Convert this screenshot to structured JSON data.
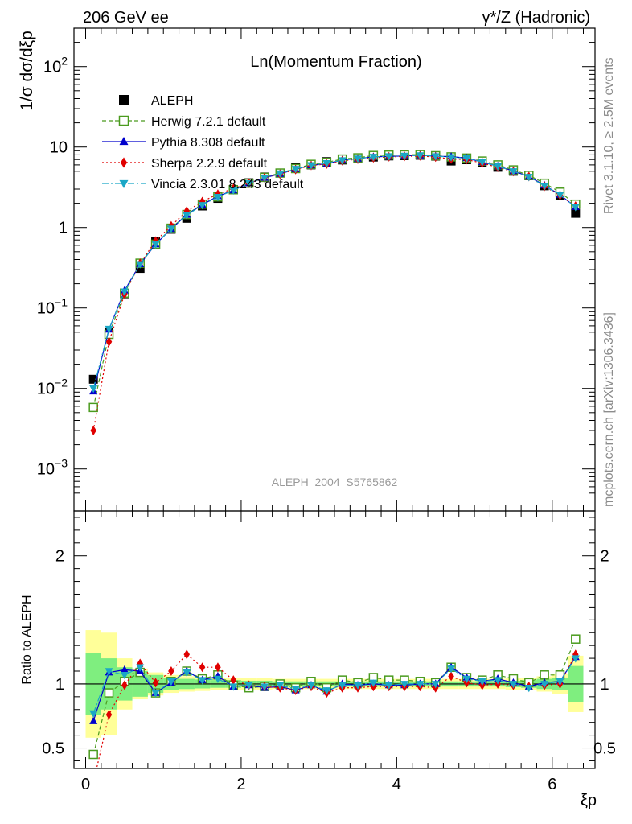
{
  "header": {
    "energy_label": "206 GeV ee",
    "process_label": "γ*/Z (Hadronic)"
  },
  "side_labels": {
    "rivet": "Rivet 3.1.10, ≥ 2.5M events",
    "mcplots": "mcplots.cern.ch [arXiv:1306.3436]"
  },
  "chart_data": [
    {
      "panel": "main",
      "type": "line",
      "title": "Ln(Momentum Fraction)",
      "ylabel": "1/σ dσ/dξp",
      "yscale": "log",
      "ylim": [
        0.0003,
        300
      ],
      "xlim": [
        -0.15,
        6.55
      ],
      "yticks": [
        "10-3",
        "10-2",
        "10-1",
        "1",
        "10",
        "102"
      ],
      "analysis_id": "ALEPH_2004_S5765862",
      "x": [
        0.1,
        0.3,
        0.5,
        0.7,
        0.9,
        1.1,
        1.3,
        1.5,
        1.7,
        1.9,
        2.1,
        2.3,
        2.5,
        2.7,
        2.9,
        3.1,
        3.3,
        3.5,
        3.7,
        3.9,
        4.1,
        4.3,
        4.5,
        4.7,
        4.9,
        5.1,
        5.3,
        5.5,
        5.7,
        5.9,
        6.1,
        6.3
      ],
      "series": [
        {
          "name": "ALEPH",
          "color": "#000000",
          "marker": "square",
          "values": [
            0.013,
            0.05,
            0.15,
            0.31,
            0.67,
            0.95,
            1.3,
            1.85,
            2.3,
            2.95,
            3.6,
            4.25,
            4.75,
            5.55,
            6.0,
            6.6,
            6.9,
            7.3,
            7.5,
            7.75,
            7.8,
            7.9,
            7.7,
            6.7,
            6.95,
            6.35,
            5.6,
            5.0,
            4.4,
            3.3,
            2.5,
            1.5
          ]
        },
        {
          "name": "Herwig 7.2.1 default",
          "color": "#4b9b1f",
          "marker": "open-square",
          "dash": "5,3",
          "values": [
            0.0058,
            0.047,
            0.153,
            0.36,
            0.62,
            0.98,
            1.45,
            1.95,
            2.4,
            2.95,
            3.55,
            4.2,
            4.75,
            5.4,
            6.1,
            6.45,
            7.1,
            7.35,
            7.85,
            7.95,
            8.0,
            8.05,
            7.8,
            7.55,
            7.3,
            6.7,
            6.0,
            5.2,
            4.45,
            3.55,
            2.75,
            1.95
          ]
        },
        {
          "name": "Pythia 8.308 default",
          "color": "#0000cc",
          "marker": "triangle-up",
          "dash": "",
          "values": [
            0.0092,
            0.054,
            0.165,
            0.35,
            0.62,
            0.96,
            1.44,
            1.92,
            2.45,
            2.9,
            3.55,
            4.15,
            4.65,
            5.3,
            5.95,
            6.2,
            6.9,
            7.2,
            7.55,
            7.65,
            7.75,
            7.9,
            7.7,
            7.6,
            7.3,
            6.5,
            5.8,
            5.05,
            4.3,
            3.35,
            2.55,
            1.8
          ]
        },
        {
          "name": "Sherpa 2.2.9 default",
          "color": "#e00000",
          "marker": "diamond",
          "dash": "2,3",
          "values": [
            0.003,
            0.038,
            0.148,
            0.36,
            0.68,
            1.05,
            1.6,
            2.1,
            2.6,
            3.05,
            3.55,
            4.15,
            4.6,
            5.25,
            5.9,
            6.15,
            6.75,
            7.05,
            7.35,
            7.55,
            7.65,
            7.75,
            7.5,
            7.1,
            7.0,
            6.3,
            5.6,
            4.95,
            4.3,
            3.25,
            2.5,
            1.85
          ]
        },
        {
          "name": "Vincia 2.3.01 8.243 default",
          "color": "#1aa7c6",
          "marker": "triangle-down",
          "dash": "8,3,2,3",
          "values": [
            0.01,
            0.055,
            0.16,
            0.35,
            0.62,
            0.97,
            1.42,
            1.9,
            2.4,
            2.9,
            3.55,
            4.15,
            4.7,
            5.35,
            5.95,
            6.3,
            6.85,
            7.2,
            7.55,
            7.7,
            7.8,
            7.9,
            7.7,
            7.5,
            7.25,
            6.5,
            5.75,
            5.0,
            4.25,
            3.3,
            2.55,
            1.8
          ]
        }
      ],
      "legend_position": "top-left"
    },
    {
      "panel": "ratio",
      "type": "line",
      "ylabel": "Ratio to ALEPH",
      "xlabel": "ξp",
      "ylim": [
        0.34,
        2.35
      ],
      "yticks": [
        "0.5",
        "1",
        "2"
      ],
      "xticks": [
        "0",
        "2",
        "4",
        "6"
      ],
      "x": [
        0.1,
        0.3,
        0.5,
        0.7,
        0.9,
        1.1,
        1.3,
        1.5,
        1.7,
        1.9,
        2.1,
        2.3,
        2.5,
        2.7,
        2.9,
        3.1,
        3.3,
        3.5,
        3.7,
        3.9,
        4.1,
        4.3,
        4.5,
        4.7,
        4.9,
        5.1,
        5.3,
        5.5,
        5.7,
        5.9,
        6.1,
        6.3
      ],
      "bands": {
        "stat_color": "#7fee7f",
        "total_color": "#ffff99",
        "stat_half_width": [
          0.24,
          0.2,
          0.13,
          0.1,
          0.07,
          0.05,
          0.04,
          0.035,
          0.03,
          0.03,
          0.025,
          0.025,
          0.02,
          0.02,
          0.02,
          0.02,
          0.02,
          0.02,
          0.02,
          0.02,
          0.02,
          0.02,
          0.02,
          0.02,
          0.02,
          0.02,
          0.02,
          0.025,
          0.03,
          0.04,
          0.05,
          0.14
        ],
        "total_half_width": [
          0.42,
          0.4,
          0.2,
          0.12,
          0.09,
          0.07,
          0.06,
          0.055,
          0.05,
          0.05,
          0.045,
          0.045,
          0.04,
          0.04,
          0.04,
          0.04,
          0.04,
          0.04,
          0.04,
          0.04,
          0.04,
          0.04,
          0.04,
          0.04,
          0.04,
          0.04,
          0.04,
          0.045,
          0.05,
          0.06,
          0.08,
          0.22
        ]
      },
      "series": [
        {
          "name": "Herwig 7.2.1 default",
          "color": "#4b9b1f",
          "marker": "open-square",
          "dash": "5,3",
          "values": [
            0.45,
            0.93,
            1.02,
            1.09,
            0.93,
            1.02,
            1.1,
            1.04,
            1.07,
            0.99,
            0.97,
            0.98,
            1.0,
            0.97,
            1.02,
            0.97,
            1.03,
            1.01,
            1.05,
            1.03,
            1.03,
            1.02,
            1.01,
            1.13,
            1.05,
            1.03,
            1.07,
            1.04,
            1.01,
            1.07,
            1.07,
            1.35
          ]
        },
        {
          "name": "Pythia 8.308 default",
          "color": "#0000cc",
          "marker": "triangle-up",
          "dash": "",
          "values": [
            0.71,
            1.09,
            1.11,
            1.1,
            0.93,
            1.01,
            1.1,
            1.03,
            1.06,
            0.98,
            0.99,
            0.97,
            0.98,
            0.95,
            0.99,
            0.94,
            1.0,
            0.99,
            1.0,
            0.99,
            0.99,
            1.0,
            1.0,
            1.13,
            1.05,
            1.02,
            1.04,
            1.01,
            0.98,
            1.01,
            1.02,
            1.21
          ]
        },
        {
          "name": "Sherpa 2.2.9 default",
          "color": "#e00000",
          "marker": "diamond",
          "dash": "2,3",
          "values": [
            0.23,
            0.76,
            0.99,
            1.16,
            1.01,
            1.1,
            1.23,
            1.13,
            1.13,
            1.03,
            0.99,
            0.98,
            0.97,
            0.95,
            0.98,
            0.93,
            0.97,
            0.97,
            0.98,
            0.98,
            0.98,
            0.98,
            0.97,
            1.06,
            1.01,
            0.99,
            1.0,
            0.99,
            0.98,
            0.99,
            1.0,
            1.23
          ]
        },
        {
          "name": "Vincia 2.3.01 8.243 default",
          "color": "#1aa7c6",
          "marker": "triangle-down",
          "dash": "8,3,2,3",
          "values": [
            0.77,
            1.1,
            1.07,
            1.13,
            0.93,
            1.02,
            1.09,
            1.03,
            1.04,
            0.98,
            0.99,
            0.98,
            0.99,
            0.96,
            0.99,
            0.95,
            0.99,
            0.99,
            1.01,
            0.99,
            1.0,
            1.0,
            1.0,
            1.12,
            1.04,
            1.02,
            1.03,
            1.0,
            0.97,
            1.0,
            1.02,
            1.2
          ]
        }
      ]
    }
  ]
}
